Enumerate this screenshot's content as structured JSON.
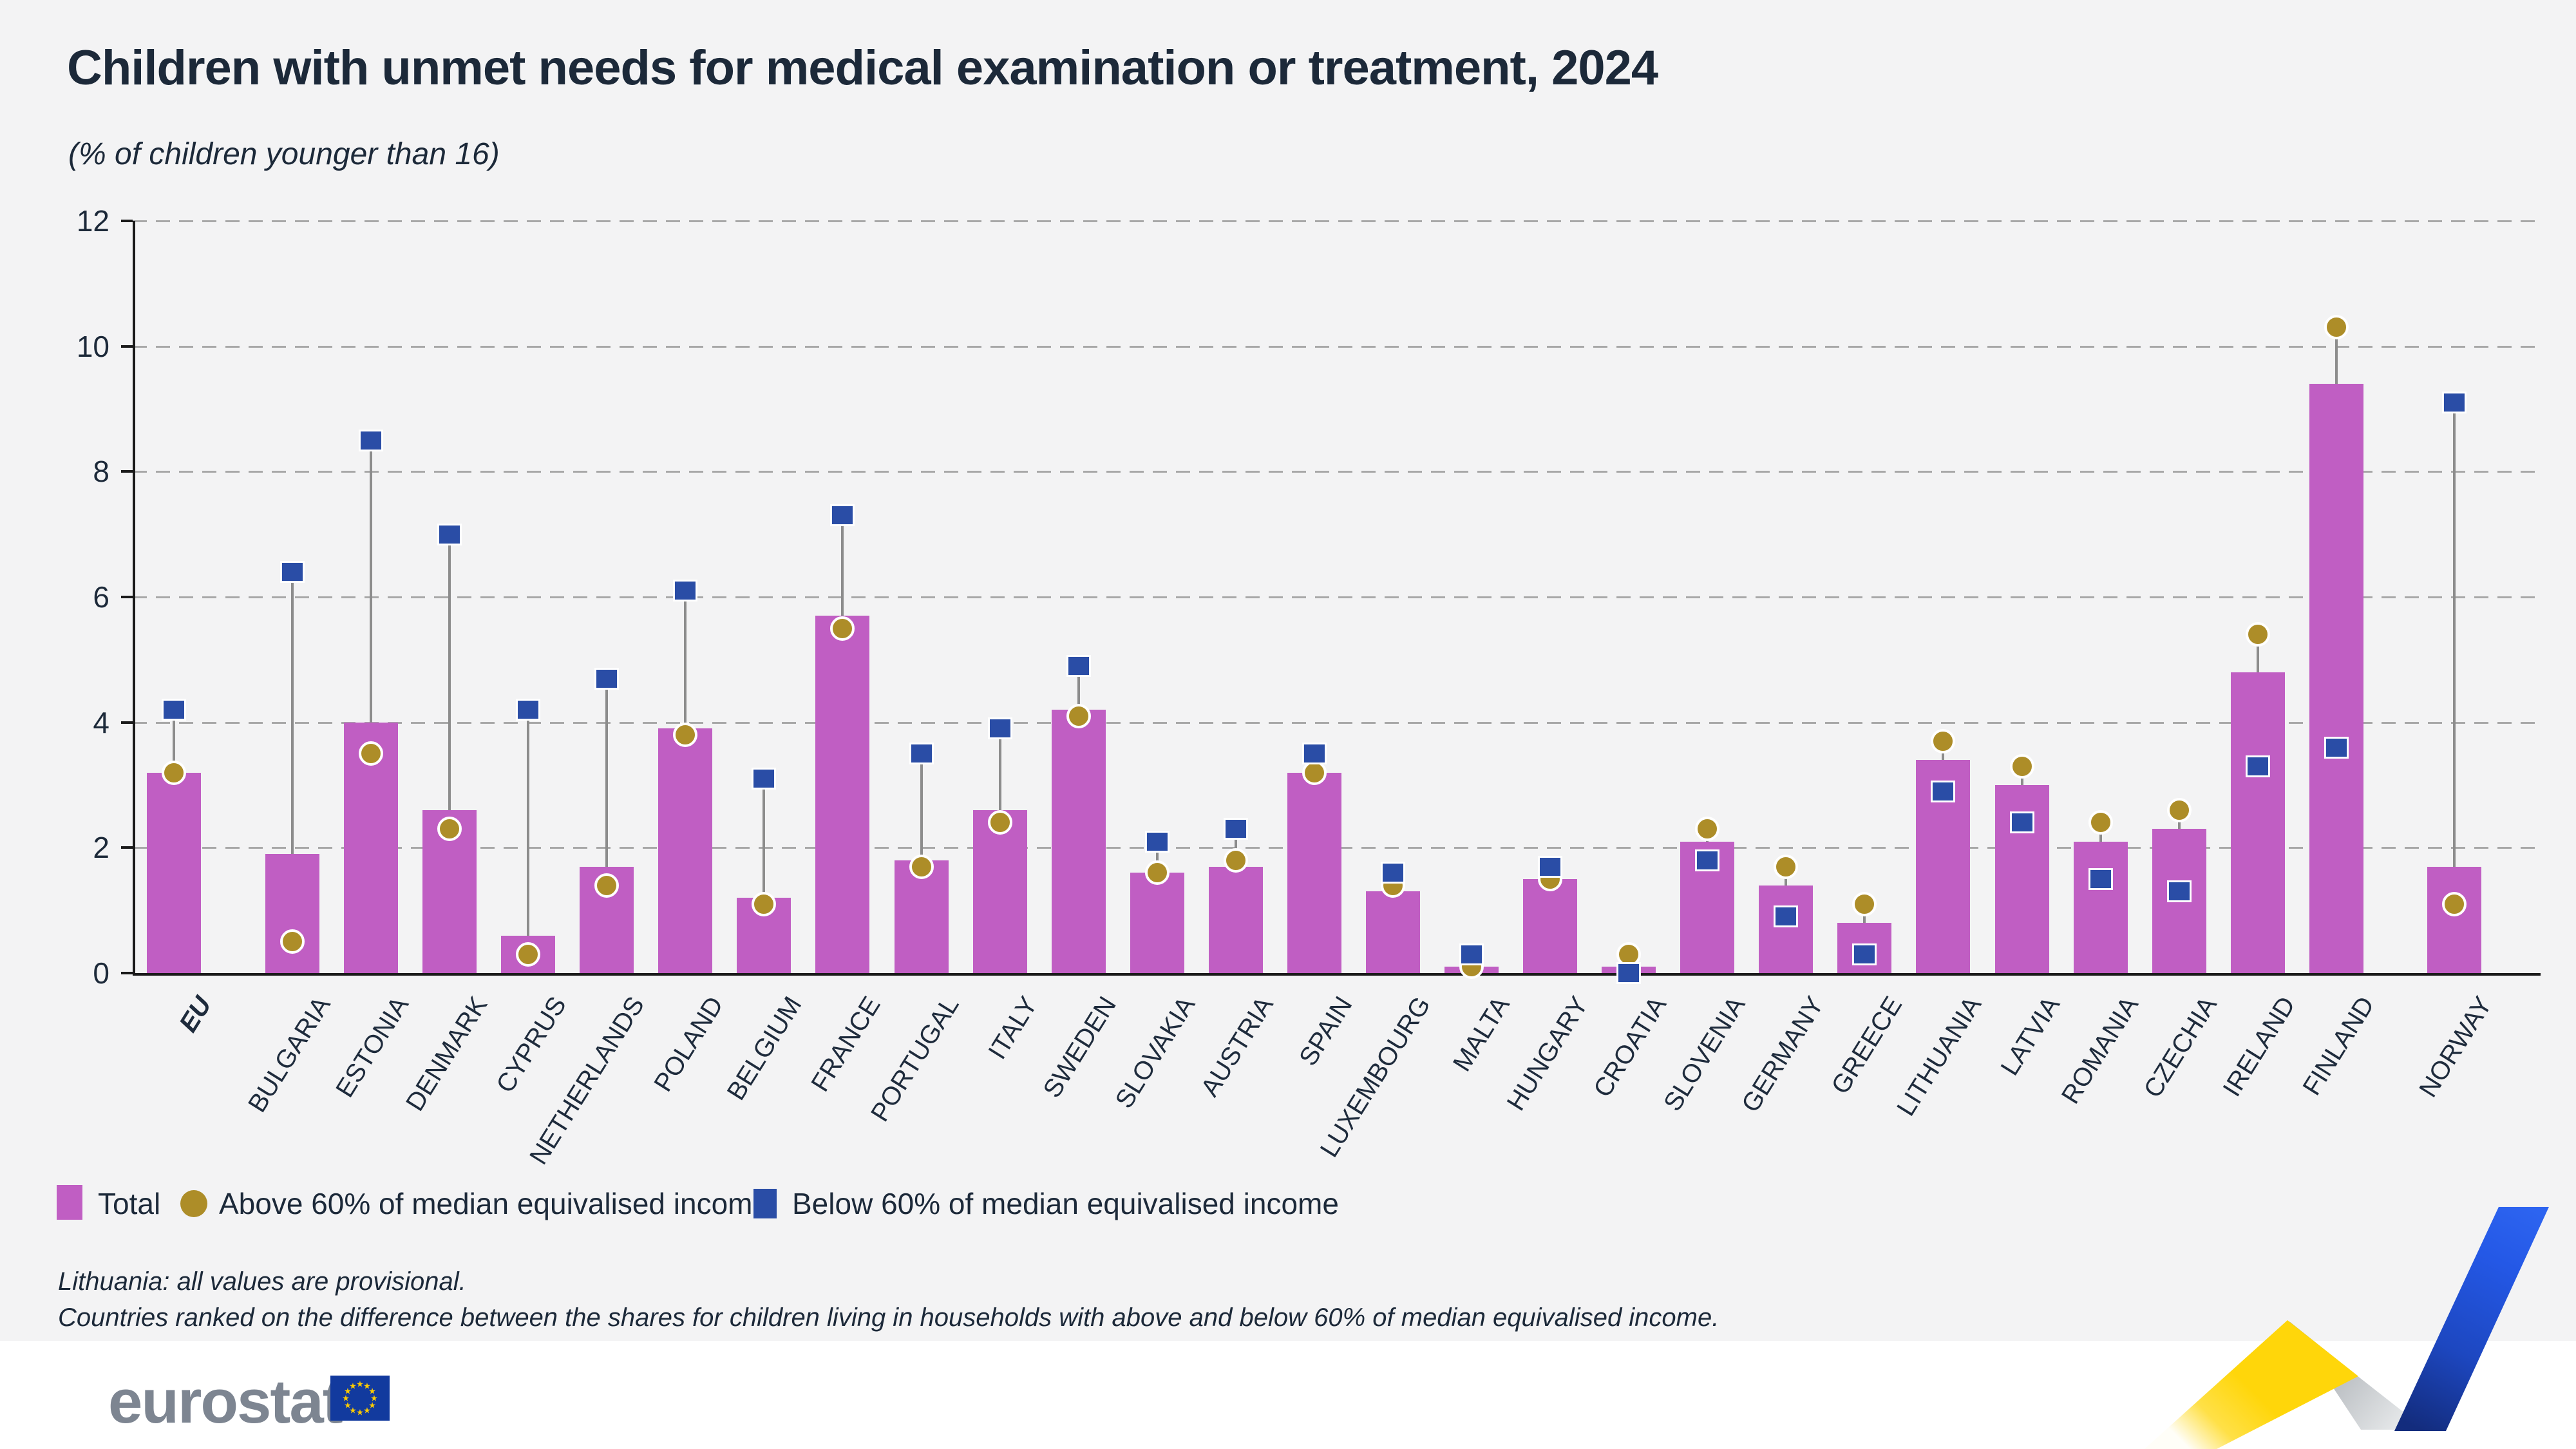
{
  "header": {
    "title": "Children with unmet needs for medical examination or treatment, 2024",
    "subtitle": "(% of children younger than 16)"
  },
  "legend": {
    "items": [
      {
        "label": "Total",
        "marker": "magenta-bar-swatch"
      },
      {
        "label": "Above 60% of median equivalised income",
        "marker": "gold-circle"
      },
      {
        "label": "Below 60% of median equivalised income",
        "marker": "blue-square"
      }
    ]
  },
  "footnotes": {
    "line1": "Lithuania: all values are provisional.",
    "line2": "Countries ranked on the difference between the shares for children living in households with above and below 60% of median equivalised income."
  },
  "branding": {
    "logo_text": "eurostat"
  },
  "colors": {
    "background": "#f3f3f4",
    "bar_magenta": "#c05ec3",
    "gold": "#ad8d28",
    "blue": "#2a4da6",
    "grid": "#a8a8a8",
    "axis": "#1a1a1a",
    "stem": "#8c8c8c",
    "text": "#1c2939",
    "logo_gray": "#7d8591",
    "flag_blue": "#123a9e",
    "star_yellow": "#ffcc00",
    "ribbon_yellow": "#ffd60a",
    "ribbon_blue": "#2458e6"
  },
  "chart_data": {
    "type": "bar",
    "title": "Children with unmet needs for medical examination or treatment, 2024",
    "unit": "% of children younger than 16",
    "ylim": [
      0,
      12
    ],
    "yticks": [
      0,
      2,
      4,
      6,
      8,
      10,
      12
    ],
    "grid": "horizontal-dashed",
    "legend_position": "bottom-left",
    "categories": [
      "EU",
      "BULGARIA",
      "ESTONIA",
      "DENMARK",
      "CYPRUS",
      "NETHERLANDS",
      "POLAND",
      "BELGIUM",
      "FRANCE",
      "PORTUGAL",
      "ITALY",
      "SWEDEN",
      "SLOVAKIA",
      "AUSTRIA",
      "SPAIN",
      "LUXEMBOURG",
      "MALTA",
      "HUNGARY",
      "CROATIA",
      "SLOVENIA",
      "GERMANY",
      "GREECE",
      "LITHUANIA",
      "LATVIA",
      "ROMANIA",
      "CZECHIA",
      "IRELAND",
      "FINLAND",
      "NORWAY"
    ],
    "series": [
      {
        "name": "Total",
        "type": "bar",
        "color": "#c05ec3",
        "values": [
          3.2,
          1.9,
          4.0,
          2.6,
          0.6,
          1.7,
          3.9,
          1.2,
          5.7,
          1.8,
          2.6,
          4.2,
          1.6,
          1.7,
          3.2,
          1.3,
          0.1,
          1.5,
          0.1,
          2.1,
          1.4,
          0.8,
          3.4,
          3.0,
          2.1,
          2.3,
          4.8,
          9.4,
          1.7
        ]
      },
      {
        "name": "Above 60% of median equivalised income",
        "type": "point",
        "marker": "circle",
        "color": "#ad8d28",
        "values": [
          3.2,
          0.5,
          3.5,
          2.3,
          0.3,
          1.4,
          3.8,
          1.1,
          5.5,
          1.7,
          2.4,
          4.1,
          1.6,
          1.8,
          3.2,
          1.4,
          0.1,
          1.5,
          0.3,
          2.3,
          1.7,
          1.1,
          3.7,
          3.3,
          2.4,
          2.6,
          5.4,
          10.3,
          1.1
        ]
      },
      {
        "name": "Below 60% of median equivalised income",
        "type": "point",
        "marker": "square",
        "color": "#2a4da6",
        "values": [
          4.2,
          6.4,
          8.5,
          7.0,
          4.2,
          4.7,
          6.1,
          3.1,
          7.3,
          3.5,
          3.9,
          4.9,
          2.1,
          2.3,
          3.5,
          1.6,
          0.3,
          1.7,
          0.0,
          1.8,
          0.9,
          0.3,
          2.9,
          2.4,
          1.5,
          1.3,
          3.3,
          3.6,
          9.1
        ]
      }
    ],
    "notes": [
      "Lithuania: all values are provisional.",
      "Countries ranked on the difference between the shares for children living in households with above and below 60% of median equivalised income."
    ]
  }
}
